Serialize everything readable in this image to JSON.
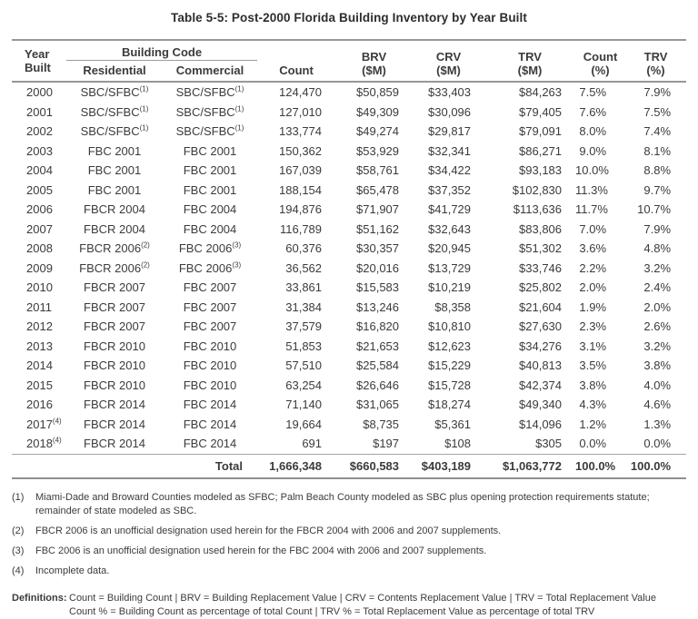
{
  "title": "Table 5-5: Post-2000 Florida Building Inventory by Year Built",
  "table": {
    "header": {
      "year_line1": "Year",
      "year_line2": "Built",
      "building_code": "Building Code",
      "residential": "Residential",
      "commercial": "Commercial",
      "count": "Count",
      "brv_line1": "BRV",
      "brv_line2": "($M)",
      "crv_line1": "CRV",
      "crv_line2": "($M)",
      "trv_line1": "TRV",
      "trv_line2": "($M)",
      "count_pct_line1": "Count",
      "count_pct_line2": "(%)",
      "trv_pct_line1": "TRV",
      "trv_pct_line2": "(%)"
    },
    "rows": [
      {
        "year": "2000",
        "year_sup": "",
        "res": "SBC/SFBC",
        "res_sup": "(1)",
        "com": "SBC/SFBC",
        "com_sup": "(1)",
        "count": "124,470",
        "brv": "$50,859",
        "crv": "$33,403",
        "trv": "$84,263",
        "count_pct": "7.5%",
        "trv_pct": "7.9%"
      },
      {
        "year": "2001",
        "year_sup": "",
        "res": "SBC/SFBC",
        "res_sup": "(1)",
        "com": "SBC/SFBC",
        "com_sup": "(1)",
        "count": "127,010",
        "brv": "$49,309",
        "crv": "$30,096",
        "trv": "$79,405",
        "count_pct": "7.6%",
        "trv_pct": "7.5%"
      },
      {
        "year": "2002",
        "year_sup": "",
        "res": "SBC/SFBC",
        "res_sup": "(1)",
        "com": "SBC/SFBC",
        "com_sup": "(1)",
        "count": "133,774",
        "brv": "$49,274",
        "crv": "$29,817",
        "trv": "$79,091",
        "count_pct": "8.0%",
        "trv_pct": "7.4%"
      },
      {
        "year": "2003",
        "year_sup": "",
        "res": "FBC 2001",
        "res_sup": "",
        "com": "FBC 2001",
        "com_sup": "",
        "count": "150,362",
        "brv": "$53,929",
        "crv": "$32,341",
        "trv": "$86,271",
        "count_pct": "9.0%",
        "trv_pct": "8.1%"
      },
      {
        "year": "2004",
        "year_sup": "",
        "res": "FBC 2001",
        "res_sup": "",
        "com": "FBC 2001",
        "com_sup": "",
        "count": "167,039",
        "brv": "$58,761",
        "crv": "$34,422",
        "trv": "$93,183",
        "count_pct": "10.0%",
        "trv_pct": "8.8%"
      },
      {
        "year": "2005",
        "year_sup": "",
        "res": "FBC 2001",
        "res_sup": "",
        "com": "FBC 2001",
        "com_sup": "",
        "count": "188,154",
        "brv": "$65,478",
        "crv": "$37,352",
        "trv": "$102,830",
        "count_pct": "11.3%",
        "trv_pct": "9.7%"
      },
      {
        "year": "2006",
        "year_sup": "",
        "res": "FBCR 2004",
        "res_sup": "",
        "com": "FBC 2004",
        "com_sup": "",
        "count": "194,876",
        "brv": "$71,907",
        "crv": "$41,729",
        "trv": "$113,636",
        "count_pct": "11.7%",
        "trv_pct": "10.7%"
      },
      {
        "year": "2007",
        "year_sup": "",
        "res": "FBCR 2004",
        "res_sup": "",
        "com": "FBC 2004",
        "com_sup": "",
        "count": "116,789",
        "brv": "$51,162",
        "crv": "$32,643",
        "trv": "$83,806",
        "count_pct": "7.0%",
        "trv_pct": "7.9%"
      },
      {
        "year": "2008",
        "year_sup": "",
        "res": "FBCR 2006",
        "res_sup": "(2)",
        "com": "FBC 2006",
        "com_sup": "(3)",
        "count": "60,376",
        "brv": "$30,357",
        "crv": "$20,945",
        "trv": "$51,302",
        "count_pct": "3.6%",
        "trv_pct": "4.8%"
      },
      {
        "year": "2009",
        "year_sup": "",
        "res": "FBCR 2006",
        "res_sup": "(2)",
        "com": "FBC 2006",
        "com_sup": "(3)",
        "count": "36,562",
        "brv": "$20,016",
        "crv": "$13,729",
        "trv": "$33,746",
        "count_pct": "2.2%",
        "trv_pct": "3.2%"
      },
      {
        "year": "2010",
        "year_sup": "",
        "res": "FBCR 2007",
        "res_sup": "",
        "com": "FBC 2007",
        "com_sup": "",
        "count": "33,861",
        "brv": "$15,583",
        "crv": "$10,219",
        "trv": "$25,802",
        "count_pct": "2.0%",
        "trv_pct": "2.4%"
      },
      {
        "year": "2011",
        "year_sup": "",
        "res": "FBCR 2007",
        "res_sup": "",
        "com": "FBC 2007",
        "com_sup": "",
        "count": "31,384",
        "brv": "$13,246",
        "crv": "$8,358",
        "trv": "$21,604",
        "count_pct": "1.9%",
        "trv_pct": "2.0%"
      },
      {
        "year": "2012",
        "year_sup": "",
        "res": "FBCR 2007",
        "res_sup": "",
        "com": "FBC 2007",
        "com_sup": "",
        "count": "37,579",
        "brv": "$16,820",
        "crv": "$10,810",
        "trv": "$27,630",
        "count_pct": "2.3%",
        "trv_pct": "2.6%"
      },
      {
        "year": "2013",
        "year_sup": "",
        "res": "FBCR 2010",
        "res_sup": "",
        "com": "FBC 2010",
        "com_sup": "",
        "count": "51,853",
        "brv": "$21,653",
        "crv": "$12,623",
        "trv": "$34,276",
        "count_pct": "3.1%",
        "trv_pct": "3.2%"
      },
      {
        "year": "2014",
        "year_sup": "",
        "res": "FBCR 2010",
        "res_sup": "",
        "com": "FBC 2010",
        "com_sup": "",
        "count": "57,510",
        "brv": "$25,584",
        "crv": "$15,229",
        "trv": "$40,813",
        "count_pct": "3.5%",
        "trv_pct": "3.8%"
      },
      {
        "year": "2015",
        "year_sup": "",
        "res": "FBCR 2010",
        "res_sup": "",
        "com": "FBC 2010",
        "com_sup": "",
        "count": "63,254",
        "brv": "$26,646",
        "crv": "$15,728",
        "trv": "$42,374",
        "count_pct": "3.8%",
        "trv_pct": "4.0%"
      },
      {
        "year": "2016",
        "year_sup": "",
        "res": "FBCR 2014",
        "res_sup": "",
        "com": "FBC 2014",
        "com_sup": "",
        "count": "71,140",
        "brv": "$31,065",
        "crv": "$18,274",
        "trv": "$49,340",
        "count_pct": "4.3%",
        "trv_pct": "4.6%"
      },
      {
        "year": "2017",
        "year_sup": "(4)",
        "res": "FBCR 2014",
        "res_sup": "",
        "com": "FBC 2014",
        "com_sup": "",
        "count": "19,664",
        "brv": "$8,735",
        "crv": "$5,361",
        "trv": "$14,096",
        "count_pct": "1.2%",
        "trv_pct": "1.3%"
      },
      {
        "year": "2018",
        "year_sup": "(4)",
        "res": "FBCR 2014",
        "res_sup": "",
        "com": "FBC 2014",
        "com_sup": "",
        "count": "691",
        "brv": "$197",
        "crv": "$108",
        "trv": "$305",
        "count_pct": "0.0%",
        "trv_pct": "0.0%"
      }
    ],
    "total": {
      "label": "Total",
      "count": "1,666,348",
      "brv": "$660,583",
      "crv": "$403,189",
      "trv": "$1,063,772",
      "count_pct": "100.0%",
      "trv_pct": "100.0%"
    }
  },
  "footnotes": [
    {
      "marker": "(1)",
      "text": "Miami-Dade and Broward Counties modeled as SFBC; Palm Beach County modeled as SBC plus opening protection requirements statute; remainder of state modeled as SBC."
    },
    {
      "marker": "(2)",
      "text": "FBCR 2006 is an unofficial designation used herein for the FBCR 2004 with 2006 and 2007 supplements."
    },
    {
      "marker": "(3)",
      "text": "FBC 2006 is an unofficial designation used herein for the FBC 2004 with 2006 and 2007 supplements."
    },
    {
      "marker": "(4)",
      "text": "Incomplete data."
    }
  ],
  "definitions": {
    "label": "Definitions:",
    "line1": "Count = Building Count | BRV = Building Replacement Value | CRV = Contents Replacement Value | TRV = Total Replacement Value",
    "line2": "Count % = Building Count as percentage of total Count | TRV % = Total Replacement Value as percentage of total TRV"
  }
}
